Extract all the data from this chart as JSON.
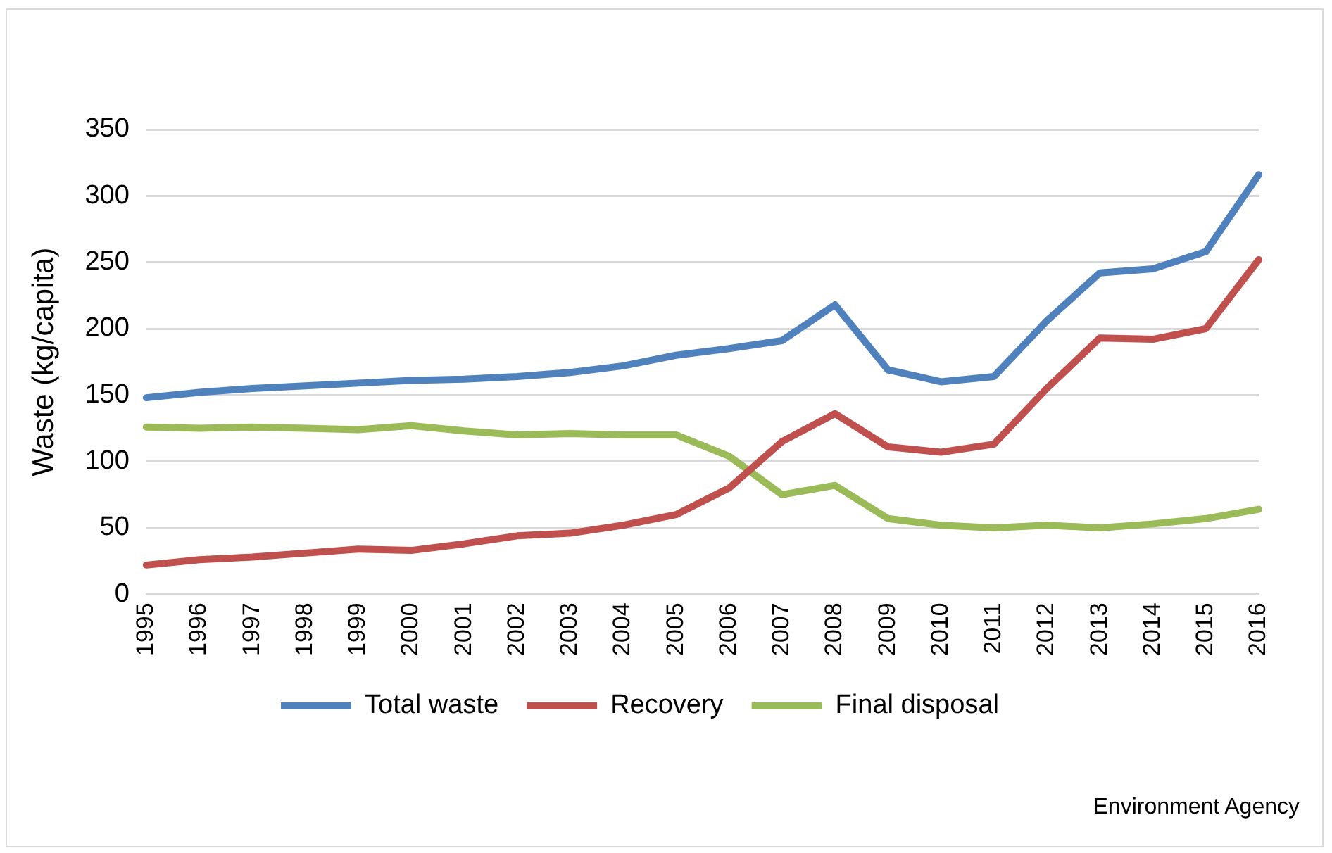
{
  "chart_data": {
    "type": "line",
    "ylabel": "Waste (kg/capita)",
    "categories": [
      "1995",
      "1996",
      "1997",
      "1998",
      "1999",
      "2000",
      "2001",
      "2002",
      "2003",
      "2004",
      "2005",
      "2006",
      "2007",
      "2008",
      "2009",
      "2010",
      "2011",
      "2012",
      "2013",
      "2014",
      "2015",
      "2016"
    ],
    "series": [
      {
        "name": "Total waste",
        "color": "#4f81bd",
        "values": [
          148,
          152,
          155,
          157,
          159,
          161,
          162,
          164,
          167,
          172,
          180,
          185,
          191,
          218,
          169,
          160,
          164,
          206,
          242,
          245,
          258,
          316
        ]
      },
      {
        "name": "Recovery",
        "color": "#c0504d",
        "values": [
          22,
          26,
          28,
          31,
          34,
          33,
          38,
          44,
          46,
          52,
          60,
          80,
          115,
          136,
          111,
          107,
          113,
          155,
          193,
          192,
          200,
          252
        ]
      },
      {
        "name": "Final disposal",
        "color": "#9bbb59",
        "values": [
          126,
          125,
          126,
          125,
          124,
          127,
          123,
          120,
          121,
          120,
          120,
          104,
          75,
          82,
          57,
          52,
          50,
          52,
          50,
          53,
          57,
          64
        ]
      }
    ],
    "ylim": [
      0,
      350
    ],
    "yticks": [
      0,
      50,
      100,
      150,
      200,
      250,
      300,
      350
    ],
    "grid": "y",
    "legend": "bottom",
    "marker": "none",
    "line_style": "solid",
    "annotations": [
      "Environment Agency"
    ]
  }
}
